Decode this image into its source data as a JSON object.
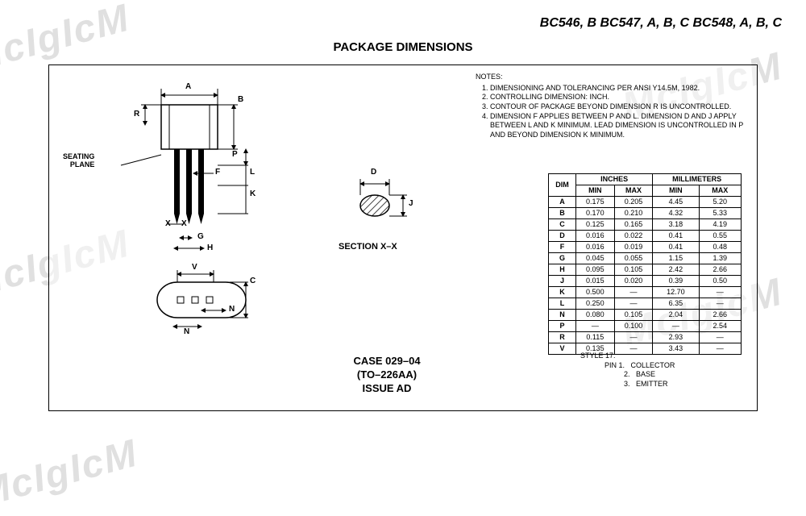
{
  "header": {
    "parts": "BC546, B BC547, A, B, C BC548, A, B, C"
  },
  "title": "PACKAGE DIMENSIONS",
  "watermark_text": "McIgIcM",
  "drawing": {
    "labels": {
      "A": "A",
      "B": "B",
      "R": "R",
      "P": "P",
      "L": "L",
      "F": "F",
      "K": "K",
      "X": "X",
      "G": "G",
      "H": "H",
      "V": "V",
      "C": "C",
      "N": "N",
      "D": "D",
      "J": "J"
    },
    "seating_plane": "SEATING\nPLANE",
    "section_label": "SECTION X–X",
    "case_line1": "CASE 029–04",
    "case_line2": "(TO–226AA)",
    "case_line3": "ISSUE AD"
  },
  "notes": {
    "heading": "NOTES:",
    "items": [
      "DIMENSIONING AND TOLERANCING PER ANSI Y14.5M, 1982.",
      "CONTROLLING DIMENSION: INCH.",
      "CONTOUR OF PACKAGE BEYOND DIMENSION R IS UNCONTROLLED.",
      "DIMENSION F APPLIES BETWEEN P AND L. DIMENSION D AND J APPLY BETWEEN L AND K MINIMUM. LEAD DIMENSION IS UNCONTROLLED IN P AND BEYOND DIMENSION K MINIMUM."
    ]
  },
  "table": {
    "head_inches": "INCHES",
    "head_mm": "MILLIMETERS",
    "head_dim": "DIM",
    "head_min": "MIN",
    "head_max": "MAX",
    "rows": [
      {
        "d": "A",
        "imin": "0.175",
        "imax": "0.205",
        "mmin": "4.45",
        "mmax": "5.20"
      },
      {
        "d": "B",
        "imin": "0.170",
        "imax": "0.210",
        "mmin": "4.32",
        "mmax": "5.33"
      },
      {
        "d": "C",
        "imin": "0.125",
        "imax": "0.165",
        "mmin": "3.18",
        "mmax": "4.19"
      },
      {
        "d": "D",
        "imin": "0.016",
        "imax": "0.022",
        "mmin": "0.41",
        "mmax": "0.55"
      },
      {
        "d": "F",
        "imin": "0.016",
        "imax": "0.019",
        "mmin": "0.41",
        "mmax": "0.48"
      },
      {
        "d": "G",
        "imin": "0.045",
        "imax": "0.055",
        "mmin": "1.15",
        "mmax": "1.39"
      },
      {
        "d": "H",
        "imin": "0.095",
        "imax": "0.105",
        "mmin": "2.42",
        "mmax": "2.66"
      },
      {
        "d": "J",
        "imin": "0.015",
        "imax": "0.020",
        "mmin": "0.39",
        "mmax": "0.50"
      },
      {
        "d": "K",
        "imin": "0.500",
        "imax": "—",
        "mmin": "12.70",
        "mmax": "—"
      },
      {
        "d": "L",
        "imin": "0.250",
        "imax": "—",
        "mmin": "6.35",
        "mmax": "—"
      },
      {
        "d": "N",
        "imin": "0.080",
        "imax": "0.105",
        "mmin": "2.04",
        "mmax": "2.66"
      },
      {
        "d": "P",
        "imin": "—",
        "imax": "0.100",
        "mmin": "—",
        "mmax": "2.54"
      },
      {
        "d": "R",
        "imin": "0.115",
        "imax": "—",
        "mmin": "2.93",
        "mmax": "—"
      },
      {
        "d": "V",
        "imin": "0.135",
        "imax": "—",
        "mmin": "3.43",
        "mmax": "—"
      }
    ]
  },
  "style": {
    "heading": "STYLE 17:",
    "pin1": "PIN 1.   COLLECTOR",
    "pin2": "2.   BASE",
    "pin3": "3.   EMITTER"
  }
}
